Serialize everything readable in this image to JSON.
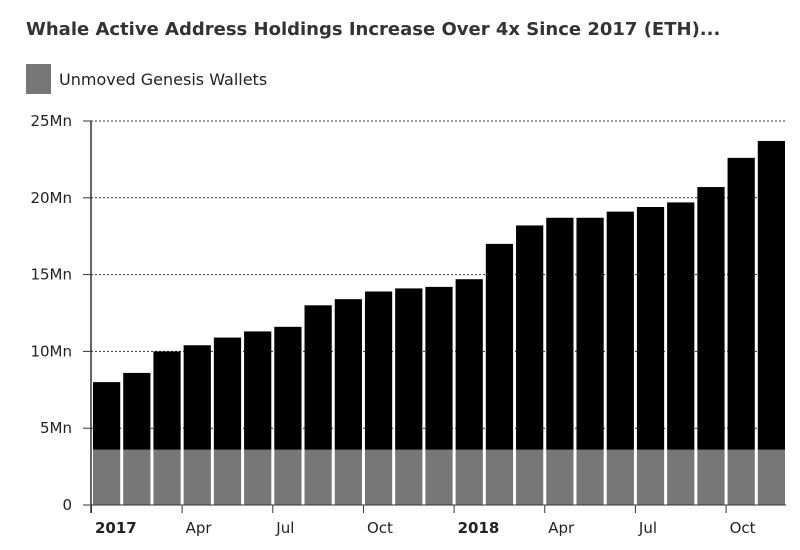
{
  "chart_data": {
    "type": "bar",
    "stacked": true,
    "title": "Whale Active Address Holdings Increase Over 4x Since 2017 (ETH)...",
    "legend": [
      {
        "label": "Unmoved Genesis Wallets",
        "color": "#777777"
      }
    ],
    "categories": [
      "2017-01",
      "2017-02",
      "2017-03",
      "2017-04",
      "2017-05",
      "2017-06",
      "2017-07",
      "2017-08",
      "2017-09",
      "2017-10",
      "2017-11",
      "2017-12",
      "2018-01",
      "2018-02",
      "2018-03",
      "2018-04",
      "2018-05",
      "2018-06",
      "2018-07",
      "2018-08",
      "2018-09",
      "2018-10",
      "2018-11"
    ],
    "series": [
      {
        "name": "Unmoved Genesis Wallets",
        "color": "#777777",
        "values": [
          3.6,
          3.6,
          3.6,
          3.6,
          3.6,
          3.6,
          3.6,
          3.6,
          3.6,
          3.6,
          3.6,
          3.6,
          3.6,
          3.6,
          3.6,
          3.6,
          3.6,
          3.6,
          3.6,
          3.6,
          3.6,
          3.6,
          3.6
        ]
      },
      {
        "color": "#000000",
        "values": [
          4.4,
          5.0,
          6.4,
          6.8,
          7.3,
          7.7,
          8.0,
          9.4,
          9.8,
          10.3,
          10.5,
          10.6,
          11.1,
          13.4,
          14.6,
          15.1,
          15.1,
          15.5,
          15.8,
          16.1,
          17.1,
          19.0,
          20.1
        ]
      }
    ],
    "ylim": [
      0,
      25
    ],
    "y_ticks": [
      {
        "value": 0,
        "label": "0"
      },
      {
        "value": 5,
        "label": "5Mn"
      },
      {
        "value": 10,
        "label": "10Mn"
      },
      {
        "value": 15,
        "label": "15Mn"
      },
      {
        "value": 20,
        "label": "20Mn"
      },
      {
        "value": 25,
        "label": "25Mn"
      }
    ],
    "x_ticks": [
      {
        "index": 0,
        "label": "2017",
        "bold": true
      },
      {
        "index": 3,
        "label": "Apr",
        "bold": false
      },
      {
        "index": 6,
        "label": "Jul",
        "bold": false
      },
      {
        "index": 9,
        "label": "Oct",
        "bold": false
      },
      {
        "index": 12,
        "label": "2018",
        "bold": true
      },
      {
        "index": 15,
        "label": "Apr",
        "bold": false
      },
      {
        "index": 18,
        "label": "Jul",
        "bold": false
      },
      {
        "index": 21,
        "label": "Oct",
        "bold": false
      }
    ],
    "grid": "horizontal dotted"
  }
}
